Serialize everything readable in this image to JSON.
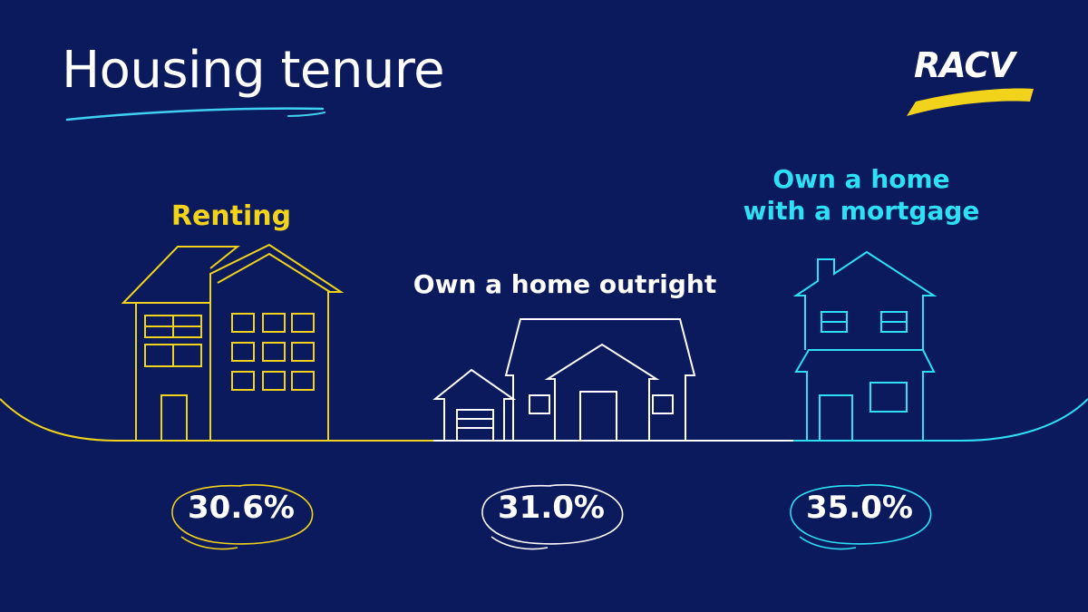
{
  "header": {
    "title": "Housing tenure",
    "brand": "RACV"
  },
  "colors": {
    "background": "#0b1a5c",
    "renting": "#f2d31b",
    "outright": "#ffffff",
    "mortgage": "#2ee0f5",
    "accent_underline": "#3fd0f0"
  },
  "chart_data": {
    "type": "bar",
    "title": "Housing tenure",
    "categories": [
      "Renting",
      "Own a home outright",
      "Own a home with a mortgage"
    ],
    "values": [
      30.6,
      31.0,
      35.0
    ],
    "value_labels": [
      "30.6%",
      "31.0%",
      "35.0%"
    ],
    "unit": "%"
  }
}
